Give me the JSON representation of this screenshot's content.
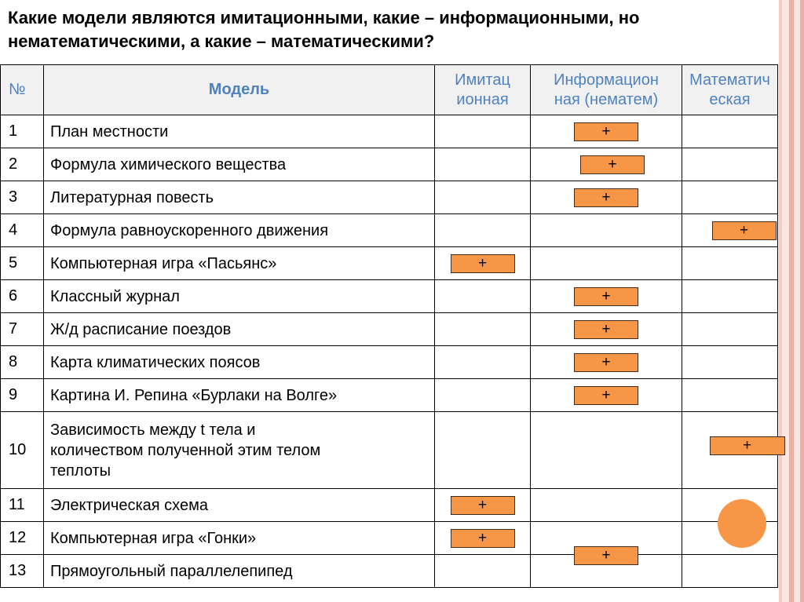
{
  "title": "Какие модели являются имитационными, какие – информационными, но\nнематематическими, а какие – математическими?",
  "table": {
    "headers": {
      "num": "№",
      "model": "Модель",
      "imitation": "Имитац\nионная",
      "informational": "Информацион\nная (нематем)",
      "mathematical": "Математич\nеская"
    },
    "plus_symbol": "+",
    "rows": [
      {
        "num": "1",
        "model": "План местности",
        "mark": "informational"
      },
      {
        "num": "2",
        "model": "Формула химического вещества",
        "mark": "informational"
      },
      {
        "num": "3",
        "model": "Литературная повесть",
        "mark": "informational"
      },
      {
        "num": "4",
        "model": "Формула равноускоренного движения",
        "mark": "mathematical"
      },
      {
        "num": "5",
        "model": "Компьютерная игра «Пасьянс»",
        "mark": "imitation"
      },
      {
        "num": "6",
        "model": "Классный журнал",
        "mark": "informational"
      },
      {
        "num": "7",
        "model": "Ж/д расписание поездов",
        "mark": "informational"
      },
      {
        "num": "8",
        "model": "Карта климатических поясов",
        "mark": "informational"
      },
      {
        "num": "9",
        "model": "Картина И. Репина «Бурлаки на Волге»",
        "mark": "informational"
      },
      {
        "num": "10",
        "model": "Зависимость между t тела и\nколичеством полученной этим телом\nтеплоты",
        "mark": "mathematical"
      },
      {
        "num": "11",
        "model": "Электрическая схема",
        "mark": "imitation"
      },
      {
        "num": "12",
        "model": "Компьютерная игра «Гонки»",
        "mark": "imitation"
      },
      {
        "num": "13",
        "model": "Прямоугольный параллелепипед",
        "mark": "informational"
      }
    ]
  },
  "colors": {
    "accent_orange": "#f79646",
    "header_text_blue": "#4f81bd"
  }
}
